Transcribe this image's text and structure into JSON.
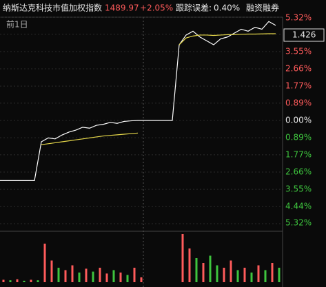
{
  "header": {
    "name": "纳斯达克科技市值加权指数",
    "price": "1489.97",
    "change": "+2.05%",
    "tracking_label": "跟踪误差:",
    "tracking_value": "0.40%",
    "margin": "融资融券",
    "prev_day": "前1日"
  },
  "chart_data": [
    {
      "type": "line",
      "price_label": "1.426",
      "x": [
        0,
        1,
        2,
        3,
        4,
        5,
        6,
        7,
        8,
        9,
        10,
        11,
        12,
        13,
        14,
        15,
        16,
        17,
        18,
        19,
        20,
        21,
        22,
        23,
        24,
        25,
        26,
        27,
        28,
        29,
        30,
        31,
        32,
        33,
        34,
        35,
        36,
        37,
        38,
        39,
        40
      ],
      "xlim": [
        0,
        41
      ],
      "ylim": [
        -5.32,
        5.32
      ],
      "yticks": [
        {
          "value": 5.32,
          "label": "5.32%"
        },
        {
          "value": 4.44,
          "label": "4.44%"
        },
        {
          "value": 3.55,
          "label": "3.55%"
        },
        {
          "value": 2.66,
          "label": "2.66%"
        },
        {
          "value": 1.77,
          "label": "1.77%"
        },
        {
          "value": 0.89,
          "label": "0.89%"
        },
        {
          "value": 0,
          "label": "0.00%"
        },
        {
          "value": -0.89,
          "label": "0.89%"
        },
        {
          "value": -1.77,
          "label": "1.77%"
        },
        {
          "value": -2.66,
          "label": "2.66%"
        },
        {
          "value": -3.55,
          "label": "3.55%"
        },
        {
          "value": -4.44,
          "label": "4.44%"
        },
        {
          "value": -5.32,
          "label": "5.32%"
        }
      ],
      "grid": true,
      "series": [
        {
          "color": "#ffffff",
          "values": [
            -3.1,
            -3.1,
            -3.1,
            -3.1,
            -3.1,
            -3.1,
            -1.1,
            -0.9,
            -0.95,
            -0.75,
            -0.6,
            -0.5,
            -0.35,
            -0.4,
            -0.25,
            -0.2,
            -0.1,
            -0.15,
            -0.05,
            -0.02,
            0,
            0,
            0,
            0,
            0,
            0,
            3.9,
            4.4,
            4.6,
            4.3,
            4.1,
            3.9,
            4.2,
            4.3,
            4.5,
            4.7,
            4.6,
            4.8,
            4.7,
            5.1,
            4.9
          ]
        },
        {
          "color": "#e6d84a",
          "values": [
            null,
            null,
            null,
            null,
            null,
            null,
            -1.25,
            -1.2,
            -1.15,
            -1.1,
            -1.05,
            -1.0,
            -0.95,
            -0.9,
            -0.85,
            -0.8,
            -0.77,
            -0.74,
            -0.71,
            -0.68,
            -0.65,
            null,
            null,
            null,
            null,
            null,
            3.9,
            4.25,
            4.35,
            4.4,
            4.4,
            4.38,
            4.4,
            4.42,
            4.43,
            4.44,
            4.45,
            4.45,
            4.46,
            4.47,
            4.47
          ]
        }
      ]
    },
    {
      "type": "bar",
      "ylim": [
        0,
        100
      ],
      "values": [
        5,
        4,
        6,
        3,
        5,
        4,
        80,
        45,
        30,
        25,
        35,
        20,
        28,
        22,
        30,
        18,
        25,
        20,
        15,
        30,
        10,
        0,
        0,
        0,
        0,
        0,
        100,
        70,
        50,
        40,
        55,
        35,
        30,
        45,
        25,
        30,
        20,
        35,
        25,
        40,
        30
      ],
      "colors": [
        "#ff5b5b",
        "#3ec43e",
        "#ff5b5b",
        "#3ec43e",
        "#ff5b5b",
        "#3ec43e",
        "#ff5b5b",
        "#ff5b5b",
        "#3ec43e",
        "#ff5b5b",
        "#ff5b5b",
        "#3ec43e",
        "#ff5b5b",
        "#3ec43e",
        "#ff5b5b",
        "#ff5b5b",
        "#3ec43e",
        "#ff5b5b",
        "#3ec43e",
        "#ff5b5b",
        "#ff5b5b",
        "#ff5b5b",
        "#ff5b5b",
        "#ff5b5b",
        "#ff5b5b",
        "#ff5b5b",
        "#ff5b5b",
        "#ff5b5b",
        "#3ec43e",
        "#ff5b5b",
        "#3ec43e",
        "#3ec43e",
        "#ff5b5b",
        "#ff5b5b",
        "#3ec43e",
        "#ff5b5b",
        "#3ec43e",
        "#ff5b5b",
        "#3ec43e",
        "#ff5b5b",
        "#3ec43e"
      ]
    }
  ]
}
